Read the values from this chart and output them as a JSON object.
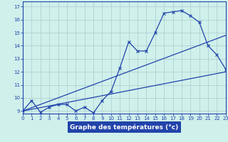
{
  "xlabel": "Graphe des températures (°c)",
  "bg_color": "#cff0eb",
  "grid_color": "#aacccc",
  "line_color": "#2244aa",
  "xlabel_bg": "#2244aa",
  "xlabel_fg": "#ffffff",
  "x_ticks": [
    0,
    1,
    2,
    3,
    4,
    5,
    6,
    7,
    8,
    9,
    10,
    11,
    12,
    13,
    14,
    15,
    16,
    17,
    18,
    19,
    20,
    21,
    22,
    23
  ],
  "y_ticks": [
    9,
    10,
    11,
    12,
    13,
    14,
    15,
    16,
    17
  ],
  "xlim": [
    0,
    23
  ],
  "ylim": [
    8.8,
    17.4
  ],
  "line1_x": [
    0,
    1,
    2,
    3,
    4,
    5,
    6,
    7,
    8,
    9,
    10,
    11,
    12,
    13,
    14,
    15,
    16,
    17,
    18,
    19,
    20,
    21,
    22,
    23
  ],
  "line1_y": [
    9.0,
    9.8,
    8.9,
    9.3,
    9.5,
    9.5,
    9.0,
    9.3,
    8.85,
    9.8,
    10.5,
    12.3,
    14.3,
    13.6,
    13.6,
    15.0,
    16.5,
    16.6,
    16.7,
    16.3,
    15.8,
    14.0,
    13.3,
    12.2
  ],
  "line2_x": [
    0,
    23
  ],
  "line2_y": [
    9.0,
    14.8
  ],
  "line3_x": [
    0,
    23
  ],
  "line3_y": [
    9.0,
    12.0
  ]
}
